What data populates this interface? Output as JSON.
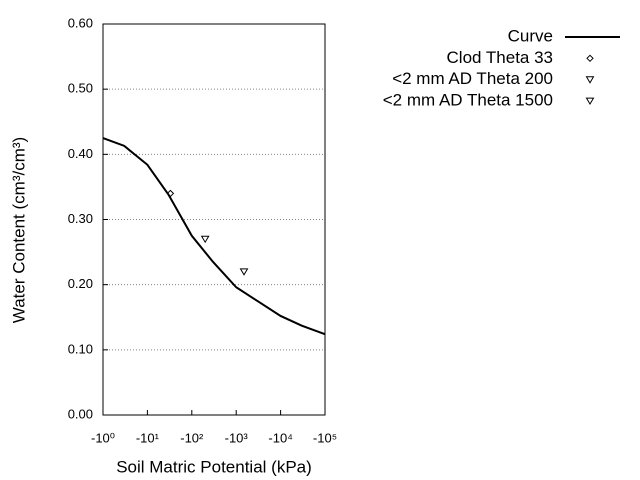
{
  "chart_data": {
    "type": "line",
    "xlabel": "Soil Matric Potential (kPa)",
    "ylabel": "Water Content (cm³/cm³)",
    "xscale": "log",
    "xlim": [
      -1,
      -100000
    ],
    "xticks": [
      {
        "value": -1,
        "label": "-10⁰"
      },
      {
        "value": -10,
        "label": "-10¹"
      },
      {
        "value": -100,
        "label": "-10²"
      },
      {
        "value": -1000,
        "label": "-10³"
      },
      {
        "value": -10000,
        "label": "-10⁴"
      },
      {
        "value": -100000,
        "label": "-10⁵"
      }
    ],
    "ylim": [
      0,
      0.6
    ],
    "yticks": [
      {
        "value": 0,
        "label": "0.00"
      },
      {
        "value": 0.1,
        "label": "0.10"
      },
      {
        "value": 0.2,
        "label": "0.20"
      },
      {
        "value": 0.3,
        "label": "0.30"
      },
      {
        "value": 0.4,
        "label": "0.40"
      },
      {
        "value": 0.5,
        "label": "0.50"
      },
      {
        "value": 0.6,
        "label": "0.60"
      }
    ],
    "grid": true,
    "legend": "outside-right",
    "series": [
      {
        "name": "Curve",
        "color": "#000000",
        "style": "line",
        "x": [
          -1,
          -3,
          -10,
          -30,
          -100,
          -300,
          -1000,
          -3000,
          -10000,
          -30000,
          -100000
        ],
        "values": [
          0.425,
          0.413,
          0.384,
          0.338,
          0.275,
          0.235,
          0.196,
          0.175,
          0.152,
          0.137,
          0.124
        ]
      },
      {
        "name": "Clod Theta 33",
        "color": "#000000",
        "style": "marker",
        "marker": "diamond",
        "x": [
          -33
        ],
        "values": [
          0.34
        ]
      },
      {
        "name": "<2 mm AD Theta 200",
        "color": "#000000",
        "style": "marker",
        "marker": "triangle-down",
        "x": [
          -200
        ],
        "values": [
          0.27
        ]
      },
      {
        "name": "<2 mm AD Theta 1500",
        "color": "#000000",
        "style": "marker",
        "marker": "triangle-down",
        "x": [
          -1500
        ],
        "values": [
          0.22
        ]
      }
    ]
  }
}
